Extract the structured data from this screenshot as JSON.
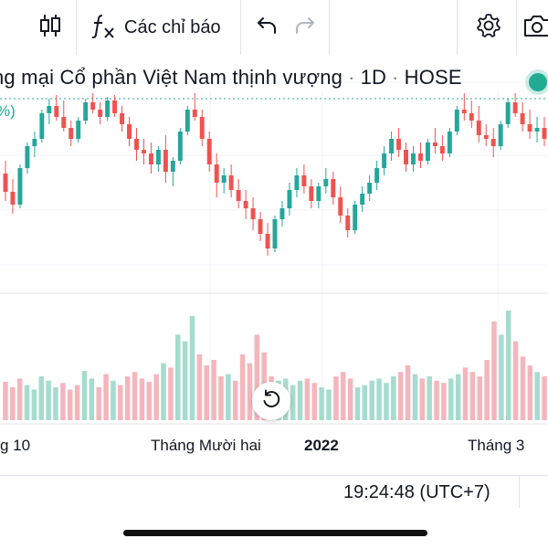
{
  "toolbar": {
    "indicators_label": "Các chỉ báo",
    "icons": [
      "candlestick-chart-icon",
      "function-fx-icon",
      "undo-icon",
      "redo-icon",
      "gear-icon",
      "camera-icon"
    ]
  },
  "symbol": {
    "name_visible": "ng mại Cổ phần Việt Nam thịnh vượng",
    "interval": "1D",
    "exchange": "HOSE",
    "status_color": "#22ab94"
  },
  "pct_fragment": "%)",
  "time_axis": {
    "labels": [
      "g 10",
      "Tháng Mười hai",
      "2022",
      "Tháng 3"
    ]
  },
  "clock": "19:24:48 (UTC+7)",
  "colors": {
    "up": "#26a69a",
    "down": "#ef5350",
    "vol_up": "#a5dccf",
    "vol_down": "#f4b6bd",
    "grid": "#e0e3eb"
  },
  "chart_data": {
    "type": "candlestick",
    "price_scale": "hidden (clipped off right edge)",
    "candles": [
      {
        "o": 0.55,
        "h": 0.62,
        "l": 0.4,
        "c": 0.45
      },
      {
        "o": 0.45,
        "h": 0.52,
        "l": 0.33,
        "c": 0.38
      },
      {
        "o": 0.38,
        "h": 0.6,
        "l": 0.36,
        "c": 0.58
      },
      {
        "o": 0.58,
        "h": 0.72,
        "l": 0.55,
        "c": 0.7
      },
      {
        "o": 0.7,
        "h": 0.78,
        "l": 0.64,
        "c": 0.74
      },
      {
        "o": 0.74,
        "h": 0.9,
        "l": 0.72,
        "c": 0.88
      },
      {
        "o": 0.88,
        "h": 0.96,
        "l": 0.82,
        "c": 0.92
      },
      {
        "o": 0.92,
        "h": 0.98,
        "l": 0.84,
        "c": 0.86
      },
      {
        "o": 0.86,
        "h": 0.95,
        "l": 0.78,
        "c": 0.8
      },
      {
        "o": 0.8,
        "h": 0.84,
        "l": 0.7,
        "c": 0.74
      },
      {
        "o": 0.74,
        "h": 0.86,
        "l": 0.72,
        "c": 0.84
      },
      {
        "o": 0.84,
        "h": 0.96,
        "l": 0.82,
        "c": 0.94
      },
      {
        "o": 0.94,
        "h": 0.99,
        "l": 0.88,
        "c": 0.9
      },
      {
        "o": 0.9,
        "h": 0.94,
        "l": 0.82,
        "c": 0.86
      },
      {
        "o": 0.86,
        "h": 0.97,
        "l": 0.84,
        "c": 0.95
      },
      {
        "o": 0.95,
        "h": 0.98,
        "l": 0.86,
        "c": 0.88
      },
      {
        "o": 0.88,
        "h": 0.92,
        "l": 0.78,
        "c": 0.82
      },
      {
        "o": 0.82,
        "h": 0.86,
        "l": 0.7,
        "c": 0.74
      },
      {
        "o": 0.74,
        "h": 0.8,
        "l": 0.62,
        "c": 0.68
      },
      {
        "o": 0.68,
        "h": 0.74,
        "l": 0.6,
        "c": 0.66
      },
      {
        "o": 0.66,
        "h": 0.72,
        "l": 0.55,
        "c": 0.6
      },
      {
        "o": 0.6,
        "h": 0.7,
        "l": 0.56,
        "c": 0.68
      },
      {
        "o": 0.68,
        "h": 0.76,
        "l": 0.5,
        "c": 0.56
      },
      {
        "o": 0.56,
        "h": 0.64,
        "l": 0.48,
        "c": 0.62
      },
      {
        "o": 0.62,
        "h": 0.8,
        "l": 0.6,
        "c": 0.78
      },
      {
        "o": 0.78,
        "h": 0.92,
        "l": 0.76,
        "c": 0.9
      },
      {
        "o": 0.9,
        "h": 0.99,
        "l": 0.84,
        "c": 0.86
      },
      {
        "o": 0.86,
        "h": 0.9,
        "l": 0.7,
        "c": 0.74
      },
      {
        "o": 0.74,
        "h": 0.78,
        "l": 0.56,
        "c": 0.6
      },
      {
        "o": 0.6,
        "h": 0.66,
        "l": 0.42,
        "c": 0.5
      },
      {
        "o": 0.5,
        "h": 0.58,
        "l": 0.44,
        "c": 0.54
      },
      {
        "o": 0.54,
        "h": 0.6,
        "l": 0.42,
        "c": 0.46
      },
      {
        "o": 0.46,
        "h": 0.52,
        "l": 0.36,
        "c": 0.4
      },
      {
        "o": 0.4,
        "h": 0.46,
        "l": 0.3,
        "c": 0.36
      },
      {
        "o": 0.36,
        "h": 0.42,
        "l": 0.24,
        "c": 0.3
      },
      {
        "o": 0.3,
        "h": 0.34,
        "l": 0.18,
        "c": 0.22
      },
      {
        "o": 0.22,
        "h": 0.28,
        "l": 0.1,
        "c": 0.14
      },
      {
        "o": 0.14,
        "h": 0.32,
        "l": 0.12,
        "c": 0.3
      },
      {
        "o": 0.3,
        "h": 0.4,
        "l": 0.26,
        "c": 0.36
      },
      {
        "o": 0.36,
        "h": 0.5,
        "l": 0.32,
        "c": 0.46
      },
      {
        "o": 0.46,
        "h": 0.58,
        "l": 0.42,
        "c": 0.54
      },
      {
        "o": 0.54,
        "h": 0.6,
        "l": 0.44,
        "c": 0.48
      },
      {
        "o": 0.48,
        "h": 0.52,
        "l": 0.36,
        "c": 0.4
      },
      {
        "o": 0.4,
        "h": 0.5,
        "l": 0.36,
        "c": 0.48
      },
      {
        "o": 0.48,
        "h": 0.58,
        "l": 0.44,
        "c": 0.52
      },
      {
        "o": 0.52,
        "h": 0.56,
        "l": 0.38,
        "c": 0.42
      },
      {
        "o": 0.42,
        "h": 0.48,
        "l": 0.28,
        "c": 0.32
      },
      {
        "o": 0.32,
        "h": 0.36,
        "l": 0.2,
        "c": 0.24
      },
      {
        "o": 0.24,
        "h": 0.4,
        "l": 0.22,
        "c": 0.38
      },
      {
        "o": 0.38,
        "h": 0.48,
        "l": 0.34,
        "c": 0.44
      },
      {
        "o": 0.44,
        "h": 0.54,
        "l": 0.4,
        "c": 0.5
      },
      {
        "o": 0.5,
        "h": 0.62,
        "l": 0.46,
        "c": 0.58
      },
      {
        "o": 0.58,
        "h": 0.7,
        "l": 0.54,
        "c": 0.66
      },
      {
        "o": 0.66,
        "h": 0.78,
        "l": 0.62,
        "c": 0.74
      },
      {
        "o": 0.74,
        "h": 0.8,
        "l": 0.64,
        "c": 0.68
      },
      {
        "o": 0.68,
        "h": 0.72,
        "l": 0.56,
        "c": 0.6
      },
      {
        "o": 0.6,
        "h": 0.7,
        "l": 0.56,
        "c": 0.66
      },
      {
        "o": 0.66,
        "h": 0.72,
        "l": 0.58,
        "c": 0.62
      },
      {
        "o": 0.62,
        "h": 0.74,
        "l": 0.6,
        "c": 0.72
      },
      {
        "o": 0.72,
        "h": 0.8,
        "l": 0.66,
        "c": 0.7
      },
      {
        "o": 0.7,
        "h": 0.76,
        "l": 0.62,
        "c": 0.66
      },
      {
        "o": 0.66,
        "h": 0.8,
        "l": 0.64,
        "c": 0.78
      },
      {
        "o": 0.78,
        "h": 0.92,
        "l": 0.76,
        "c": 0.9
      },
      {
        "o": 0.9,
        "h": 0.99,
        "l": 0.84,
        "c": 0.88
      },
      {
        "o": 0.88,
        "h": 0.95,
        "l": 0.8,
        "c": 0.84
      },
      {
        "o": 0.84,
        "h": 0.92,
        "l": 0.72,
        "c": 0.76
      },
      {
        "o": 0.76,
        "h": 0.82,
        "l": 0.7,
        "c": 0.74
      },
      {
        "o": 0.74,
        "h": 0.8,
        "l": 0.64,
        "c": 0.7
      },
      {
        "o": 0.7,
        "h": 0.84,
        "l": 0.68,
        "c": 0.82
      },
      {
        "o": 0.82,
        "h": 0.96,
        "l": 0.8,
        "c": 0.94
      },
      {
        "o": 0.94,
        "h": 0.99,
        "l": 0.86,
        "c": 0.88
      },
      {
        "o": 0.88,
        "h": 0.94,
        "l": 0.78,
        "c": 0.82
      },
      {
        "o": 0.82,
        "h": 0.9,
        "l": 0.74,
        "c": 0.78
      },
      {
        "o": 0.78,
        "h": 0.86,
        "l": 0.72,
        "c": 0.8
      },
      {
        "o": 0.8,
        "h": 0.86,
        "l": 0.7,
        "c": 0.74
      }
    ],
    "volumes": [
      0.35,
      0.3,
      0.38,
      0.32,
      0.28,
      0.4,
      0.36,
      0.3,
      0.34,
      0.28,
      0.32,
      0.45,
      0.38,
      0.3,
      0.42,
      0.36,
      0.32,
      0.4,
      0.44,
      0.38,
      0.35,
      0.42,
      0.52,
      0.48,
      0.78,
      0.72,
      0.95,
      0.6,
      0.5,
      0.55,
      0.4,
      0.42,
      0.36,
      0.6,
      0.52,
      0.78,
      0.62,
      0.4,
      0.36,
      0.38,
      0.32,
      0.36,
      0.38,
      0.34,
      0.3,
      0.28,
      0.4,
      0.44,
      0.38,
      0.3,
      0.32,
      0.36,
      0.38,
      0.34,
      0.4,
      0.44,
      0.5,
      0.42,
      0.38,
      0.4,
      0.36,
      0.34,
      0.38,
      0.42,
      0.48,
      0.44,
      0.4,
      0.55,
      0.9,
      0.78,
      1.0,
      0.72,
      0.58,
      0.5,
      0.44,
      0.4
    ]
  }
}
